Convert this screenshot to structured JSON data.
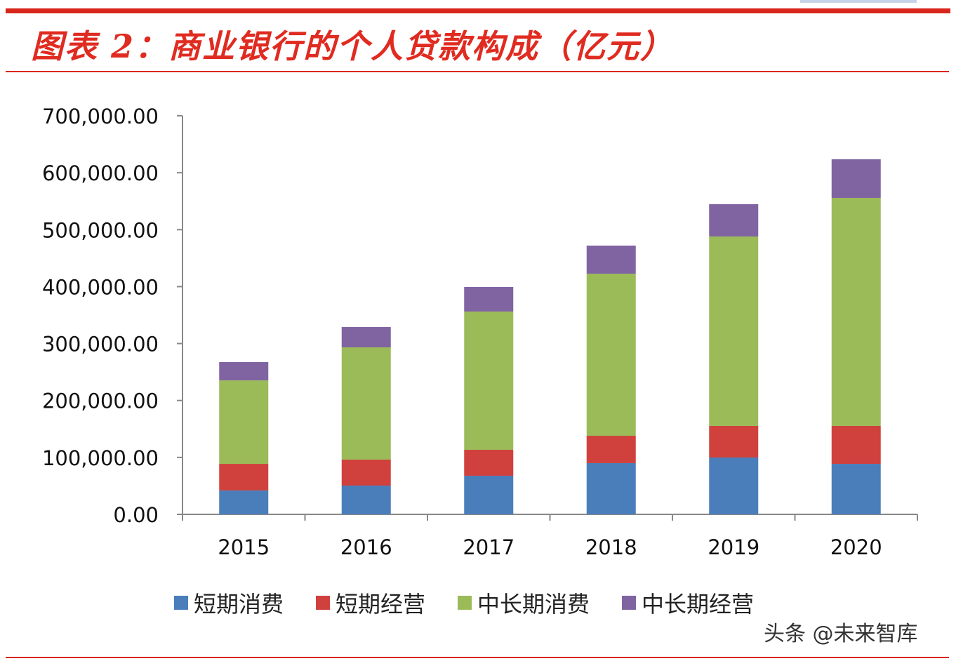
{
  "chart_data": {
    "type": "bar",
    "stacked": true,
    "title": "图表 2：商业银行的个人贷款构成（亿元）",
    "categories": [
      "2015",
      "2016",
      "2017",
      "2018",
      "2019",
      "2020"
    ],
    "series": [
      {
        "name": "短期消费",
        "color": "#4a7ebb",
        "values": [
          42000,
          50500,
          67800,
          90000,
          99800,
          88700
        ]
      },
      {
        "name": "短期经营",
        "color": "#d0413d",
        "values": [
          46700,
          45600,
          45600,
          48000,
          55500,
          66600
        ]
      },
      {
        "name": "中长期消费",
        "color": "#9bbb59",
        "values": [
          146600,
          197200,
          242800,
          284700,
          332700,
          400500
        ]
      },
      {
        "name": "中长期经营",
        "color": "#8064a2",
        "values": [
          32100,
          35700,
          43100,
          49300,
          56700,
          67800
        ]
      }
    ],
    "ylim": [
      0,
      700000
    ],
    "yticks": [
      "0.00",
      "100,000.00",
      "200,000.00",
      "300,000.00",
      "400,000.00",
      "500,000.00",
      "600,000.00",
      "700,000.00"
    ],
    "grid": false,
    "legend": "bottom"
  },
  "watermark": "头条 @未来智库"
}
